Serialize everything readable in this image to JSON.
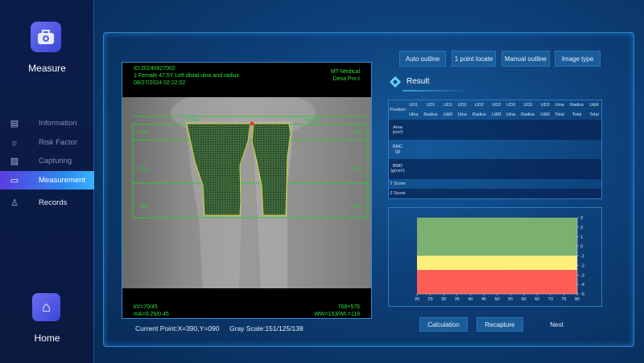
{
  "sidebar": {
    "app_title": "Measure",
    "items": [
      {
        "label": "Information",
        "icon": "clipboard-icon"
      },
      {
        "label": "Risk Factor",
        "icon": "alarm-icon"
      },
      {
        "label": "Capturing",
        "icon": "image-icon"
      },
      {
        "label": "Measurement",
        "icon": "ruler-icon",
        "active": true
      },
      {
        "label": "Records",
        "icon": "person-records-icon"
      }
    ],
    "home_label": "Home"
  },
  "image": {
    "id": "ID:20240827002",
    "patient": "1 Female 47.5Y Left distal ulna and radius",
    "datetime": "08/27/2024 02:22:02",
    "maker": "MT Medical",
    "model": "Dexa Pro-I",
    "kv": "kV=70/45",
    "ma": "mA=0.25/0.45",
    "resolution": "768×576",
    "window": "WW=153/WL=119",
    "roi_labels": {
      "ulna": "Ulna",
      "radius": "Radius",
      "ud1": "UD1",
      "ud2": "UD2",
      "ud3": "UD3"
    }
  },
  "status": {
    "current_point": "Current Point:X=390,Y=090",
    "gray_scale": "Gray Scale:151/125/138"
  },
  "toolbar": {
    "auto_outline": "Auto outline",
    "one_point": "1 point locate",
    "manual_outline": "Manual outline",
    "image_type": "Image type"
  },
  "result": {
    "title": "Result",
    "position_label": "Position",
    "columns": [
      [
        "UD1",
        "Ulna"
      ],
      [
        "UD1",
        "Radius"
      ],
      [
        "UD1",
        "U&R"
      ],
      [
        "UD2",
        "Ulna"
      ],
      [
        "UD2",
        "Radius"
      ],
      [
        "UD2",
        "U&R"
      ],
      [
        "UD3",
        "Ulna"
      ],
      [
        "UD3",
        "Radius"
      ],
      [
        "UD3",
        "U&R"
      ],
      [
        "Ulna",
        "Total"
      ],
      [
        "Radius",
        "Total"
      ],
      [
        "U&R",
        "Total"
      ]
    ],
    "rows": [
      "Area (cm²)",
      "BMC (g)",
      "BMD (g/cm²)",
      "T Score",
      "Z Score"
    ]
  },
  "chart_data": {
    "type": "area",
    "title": "",
    "xlabel": "",
    "ylabel": "",
    "xlim": [
      20,
      80
    ],
    "ylim": [
      -5,
      3
    ],
    "xticks": [
      20,
      25,
      30,
      35,
      40,
      45,
      50,
      55,
      60,
      65,
      70,
      75,
      80
    ],
    "yticks": [
      3,
      2,
      1,
      0,
      -1,
      -2,
      -3,
      -4,
      -5
    ],
    "y_axis_side": "right",
    "bands": [
      {
        "from": -1,
        "to": 3,
        "color": "#7bb071"
      },
      {
        "from": -2.5,
        "to": -1,
        "color": "#fdf07a"
      },
      {
        "from": -5,
        "to": -2.5,
        "color": "#fd5d55"
      }
    ]
  },
  "actions": {
    "calculation": "Calculation",
    "recapture": "Recapture",
    "next": "Next"
  }
}
